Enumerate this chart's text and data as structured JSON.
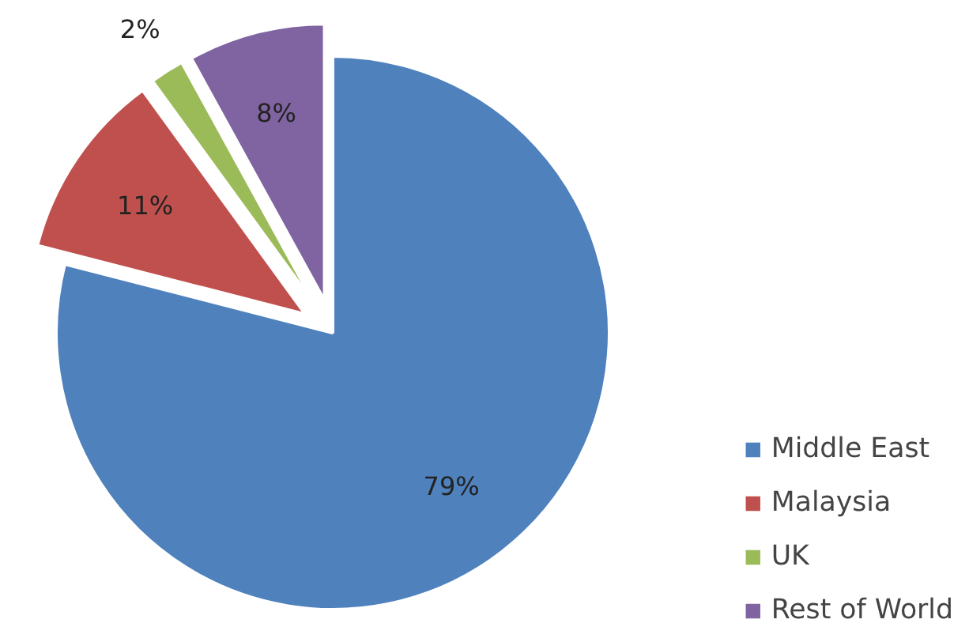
{
  "chart_data": {
    "type": "pie",
    "categories": [
      "Middle East",
      "Malaysia",
      "UK",
      "Rest of World"
    ],
    "values": [
      79,
      11,
      2,
      8
    ],
    "colors": [
      "#4f81bd",
      "#c0504d",
      "#9bbb59",
      "#8064a2"
    ],
    "value_labels": [
      "79%",
      "11%",
      "2%",
      "8%"
    ],
    "legend": "right"
  }
}
